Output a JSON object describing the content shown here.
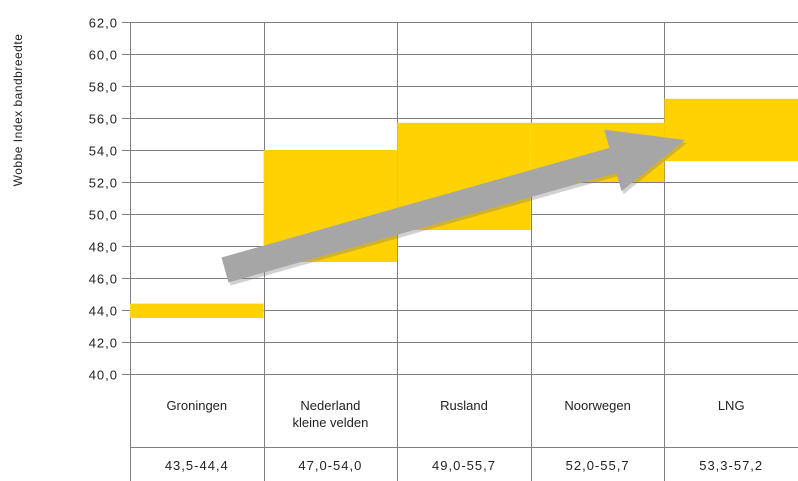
{
  "chart_data": {
    "type": "bar",
    "ylabel": "Wobbe Index bandbreedte",
    "ylim": [
      40,
      62
    ],
    "yticks": [
      "40,0",
      "42,0",
      "44,0",
      "46,0",
      "48,0",
      "50,0",
      "52,0",
      "54,0",
      "56,0",
      "58,0",
      "60,0",
      "62,0"
    ],
    "categories": [
      {
        "name": [
          "Groningen"
        ],
        "range_label": "43,5-44,4",
        "low": 43.5,
        "high": 44.4
      },
      {
        "name": [
          "Nederland",
          "kleine velden"
        ],
        "range_label": "47,0-54,0",
        "low": 47.0,
        "high": 54.0
      },
      {
        "name": [
          "Rusland"
        ],
        "range_label": "49,0-55,7",
        "low": 49.0,
        "high": 55.7
      },
      {
        "name": [
          "Noorwegen"
        ],
        "range_label": "52,0-55,7",
        "low": 52.0,
        "high": 55.7
      },
      {
        "name": [
          "LNG"
        ],
        "range_label": "53,3-57,2",
        "low": 53.3,
        "high": 57.2
      }
    ],
    "grid": true,
    "colors": {
      "bar": "#FFD200",
      "arrow": "#A6A6A6",
      "grid": "#7f7f7f"
    }
  }
}
